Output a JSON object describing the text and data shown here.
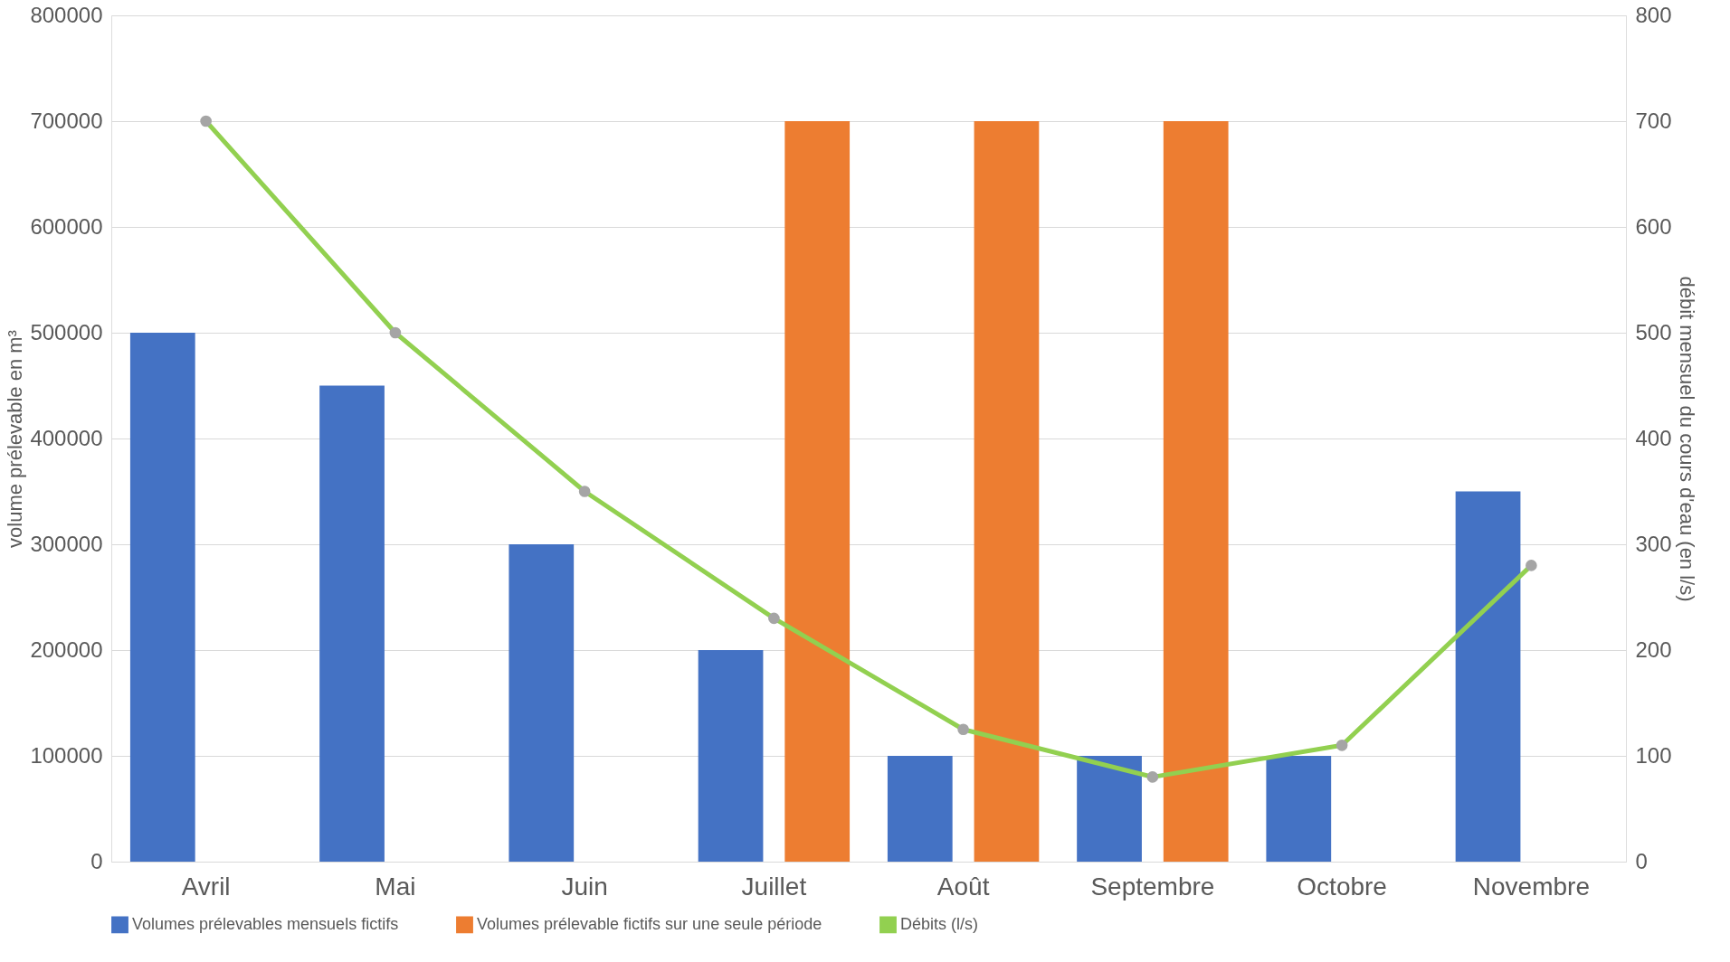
{
  "chart_data": {
    "type": "bar",
    "categories": [
      "Avril",
      "Mai",
      "Juin",
      "Juillet",
      "Août",
      "Septembre",
      "Octobre",
      "Novembre"
    ],
    "ylabel": "volume prélevable en m³",
    "y2label": "débit mensuel du cours d'eau (en l/s)",
    "ylim": [
      0,
      800000
    ],
    "yticks": [
      0,
      100000,
      200000,
      300000,
      400000,
      500000,
      600000,
      700000,
      800000
    ],
    "y2lim": [
      0,
      800
    ],
    "y2ticks": [
      0,
      100,
      200,
      300,
      400,
      500,
      600,
      700,
      800
    ],
    "grid": "y",
    "legend": "bottom",
    "series": [
      {
        "name": "Volumes prélevables mensuels fictifs",
        "color": "#4472c4",
        "values": [
          500000,
          450000,
          300000,
          200000,
          100000,
          100000,
          100000,
          350000
        ]
      },
      {
        "name": "Volumes prélevable fictifs sur une seule période",
        "color": "#ed7d31",
        "values": [
          null,
          null,
          null,
          700000,
          700000,
          700000,
          null,
          null
        ]
      },
      {
        "name": "Débits (l/s)",
        "type": "line",
        "axis": "y2",
        "color": "#92d050",
        "marker": "circle",
        "values": [
          700,
          500,
          350,
          230,
          125,
          80,
          110,
          280
        ]
      }
    ]
  }
}
